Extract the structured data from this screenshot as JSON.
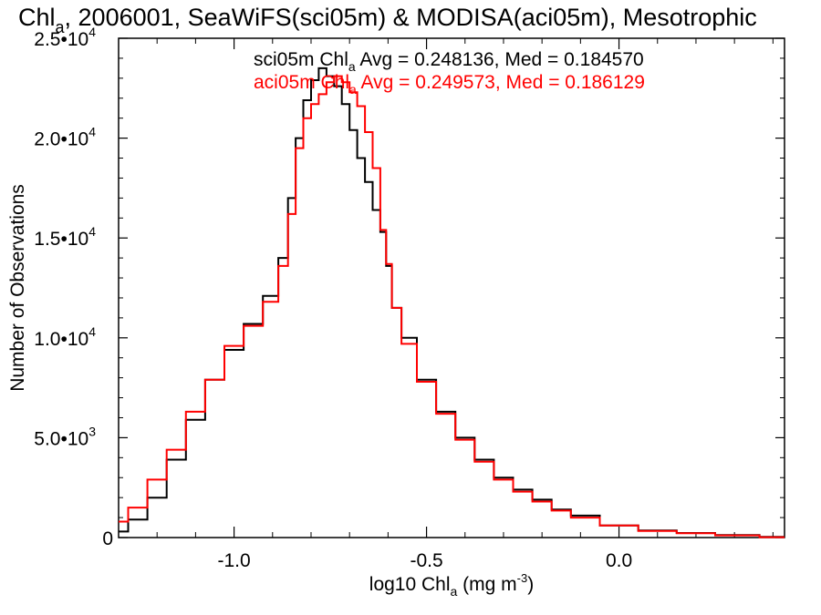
{
  "chart_data": {
    "type": "line",
    "title": {
      "main": "Chl",
      "sub": "a",
      "rest": ", 2006001, SeaWiFS(sci05m) & MODISA(aci05m), Mesotrophic"
    },
    "xlabel": {
      "main": "log10 Chl",
      "sub": "a",
      "unit_pre": " (mg m",
      "unit_sup": "-3",
      "unit_post": ")"
    },
    "ylabel": "Number of Observations",
    "xlim": [
      -1.3,
      0.43
    ],
    "ylim": [
      0,
      25000
    ],
    "x_ticks": [
      {
        "value": -1.0,
        "label": "-1.0"
      },
      {
        "value": -0.5,
        "label": "-0.5"
      },
      {
        "value": 0.0,
        "label": "0.0"
      }
    ],
    "y_ticks": [
      {
        "value": 0,
        "mant": "0",
        "exp": ""
      },
      {
        "value": 5000,
        "mant": "5.0•10",
        "exp": "3"
      },
      {
        "value": 10000,
        "mant": "1.0•10",
        "exp": "4"
      },
      {
        "value": 15000,
        "mant": "1.5•10",
        "exp": "4"
      },
      {
        "value": 20000,
        "mant": "2.0•10",
        "exp": "4"
      },
      {
        "value": 25000,
        "mant": "2.5•10",
        "exp": "4"
      }
    ],
    "legend": [
      {
        "pre": "sci05m Chl",
        "sub": "a",
        "post": " Avg = 0.248136, Med = 0.184570",
        "color": "#000000"
      },
      {
        "pre": "aci05m Chl",
        "sub": "a",
        "post": " Avg = 0.249573, Med = 0.186129",
        "color": "#ff0000"
      }
    ],
    "series": [
      {
        "color": "#000000",
        "points": [
          [
            -1.3,
            300
          ],
          [
            -1.25,
            900
          ],
          [
            -1.2,
            2000
          ],
          [
            -1.15,
            3900
          ],
          [
            -1.1,
            5900
          ],
          [
            -1.05,
            7900
          ],
          [
            -1.0,
            9400
          ],
          [
            -0.95,
            10700
          ],
          [
            -0.9,
            12100
          ],
          [
            -0.87,
            14000
          ],
          [
            -0.85,
            17000
          ],
          [
            -0.83,
            20000
          ],
          [
            -0.81,
            21900
          ],
          [
            -0.79,
            22900
          ],
          [
            -0.77,
            23500
          ],
          [
            -0.75,
            23100
          ],
          [
            -0.73,
            22600
          ],
          [
            -0.71,
            21700
          ],
          [
            -0.69,
            20400
          ],
          [
            -0.67,
            19000
          ],
          [
            -0.65,
            17800
          ],
          [
            -0.63,
            16400
          ],
          [
            -0.61,
            15300
          ],
          [
            -0.6,
            13600
          ],
          [
            -0.58,
            11500
          ],
          [
            -0.55,
            10000
          ],
          [
            -0.5,
            7900
          ],
          [
            -0.45,
            6300
          ],
          [
            -0.4,
            5000
          ],
          [
            -0.35,
            3900
          ],
          [
            -0.3,
            3000
          ],
          [
            -0.25,
            2400
          ],
          [
            -0.2,
            1900
          ],
          [
            -0.15,
            1400
          ],
          [
            -0.1,
            1100
          ],
          [
            0.0,
            600
          ],
          [
            0.1,
            350
          ],
          [
            0.2,
            230
          ],
          [
            0.3,
            130
          ],
          [
            0.43,
            30
          ]
        ]
      },
      {
        "color": "#ff0000",
        "points": [
          [
            -1.3,
            800
          ],
          [
            -1.25,
            1500
          ],
          [
            -1.2,
            2900
          ],
          [
            -1.15,
            4400
          ],
          [
            -1.1,
            6300
          ],
          [
            -1.05,
            7900
          ],
          [
            -1.0,
            9600
          ],
          [
            -0.95,
            10600
          ],
          [
            -0.9,
            11800
          ],
          [
            -0.87,
            13600
          ],
          [
            -0.85,
            16200
          ],
          [
            -0.83,
            19500
          ],
          [
            -0.81,
            21000
          ],
          [
            -0.79,
            21700
          ],
          [
            -0.77,
            22200
          ],
          [
            -0.75,
            22800
          ],
          [
            -0.73,
            23100
          ],
          [
            -0.71,
            22800
          ],
          [
            -0.69,
            22300
          ],
          [
            -0.67,
            21600
          ],
          [
            -0.65,
            20300
          ],
          [
            -0.63,
            18500
          ],
          [
            -0.61,
            15400
          ],
          [
            -0.6,
            13700
          ],
          [
            -0.58,
            11500
          ],
          [
            -0.55,
            9700
          ],
          [
            -0.5,
            7800
          ],
          [
            -0.45,
            6200
          ],
          [
            -0.4,
            4900
          ],
          [
            -0.35,
            3800
          ],
          [
            -0.3,
            2900
          ],
          [
            -0.25,
            2300
          ],
          [
            -0.2,
            1800
          ],
          [
            -0.15,
            1350
          ],
          [
            -0.1,
            1000
          ],
          [
            0.0,
            600
          ],
          [
            0.1,
            330
          ],
          [
            0.2,
            220
          ],
          [
            0.3,
            110
          ],
          [
            0.43,
            20
          ]
        ]
      }
    ]
  }
}
